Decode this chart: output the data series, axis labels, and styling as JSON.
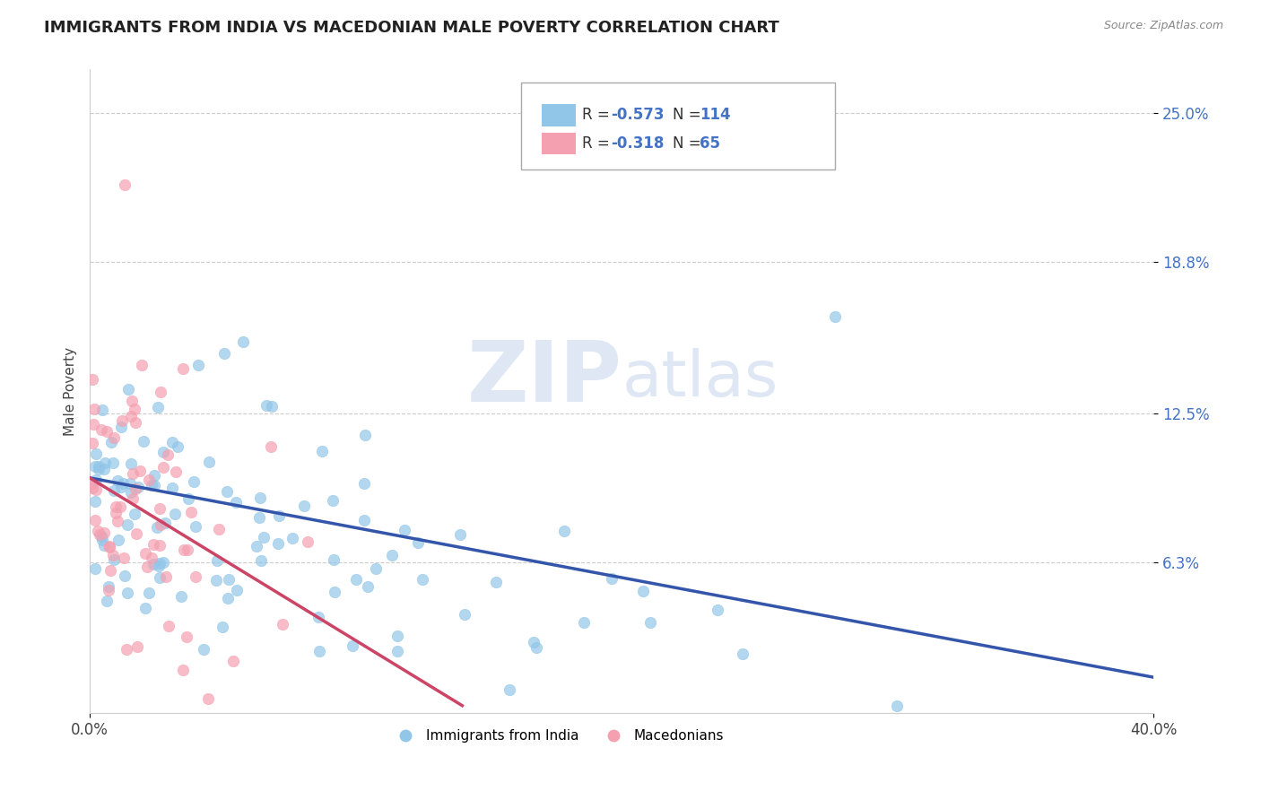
{
  "title": "IMMIGRANTS FROM INDIA VS MACEDONIAN MALE POVERTY CORRELATION CHART",
  "source_text": "Source: ZipAtlas.com",
  "ylabel": "Male Poverty",
  "xlim": [
    0.0,
    0.4
  ],
  "ylim": [
    0.0,
    0.268
  ],
  "xtick_labels": [
    "0.0%",
    "40.0%"
  ],
  "xtick_positions": [
    0.0,
    0.4
  ],
  "ytick_labels": [
    "25.0%",
    "18.8%",
    "12.5%",
    "6.3%"
  ],
  "ytick_positions": [
    0.25,
    0.188,
    0.125,
    0.063
  ],
  "blue_color": "#92C6E8",
  "pink_color": "#F4A0B0",
  "blue_line_color": "#3355AA",
  "pink_line_color": "#CC4466",
  "legend_india_label": "Immigrants from India",
  "legend_mac_label": "Macedonians",
  "r_blue": -0.573,
  "n_blue": 114,
  "r_pink": -0.318,
  "n_pink": 65,
  "seed": 42
}
